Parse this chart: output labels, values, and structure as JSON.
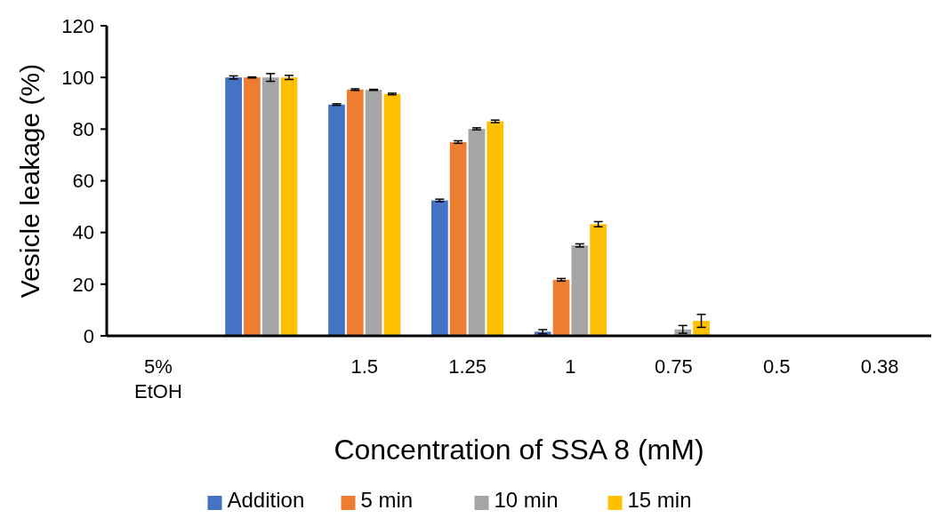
{
  "chart_data": {
    "type": "bar",
    "xlabel": "Concentration of SSA 8 (mM)",
    "ylabel": "Vesicle leakage (%)",
    "categories": [
      "5% EtOH",
      null,
      "1.5",
      "1.25",
      "1",
      "0.75",
      "0.5",
      "0.38"
    ],
    "series": [
      {
        "name": "Addition",
        "color": "#4472c4",
        "values": [
          0,
          100,
          89.5,
          52.4,
          1.6,
          0,
          0,
          0
        ],
        "errors": [
          null,
          0.6,
          0.3,
          0.5,
          0.8,
          null,
          null,
          null
        ]
      },
      {
        "name": "5 min",
        "color": "#ed7d31",
        "values": [
          0,
          100,
          95.3,
          75,
          21.7,
          0,
          0,
          0
        ],
        "errors": [
          null,
          0.2,
          0.3,
          0.5,
          0.5,
          null,
          null,
          null
        ]
      },
      {
        "name": "10 min",
        "color": "#a5a5a5",
        "values": [
          0,
          100,
          95.2,
          80.1,
          35,
          2.5,
          0,
          0
        ],
        "errors": [
          null,
          1.5,
          0.2,
          0.4,
          0.6,
          1.5,
          null,
          null
        ]
      },
      {
        "name": "15 min",
        "color": "#ffc000",
        "values": [
          0,
          100,
          93.6,
          83,
          43.2,
          5.8,
          0,
          0
        ],
        "errors": [
          null,
          0.8,
          0.3,
          0.5,
          1,
          2.5,
          null,
          null
        ]
      }
    ],
    "ylim": [
      0,
      120
    ],
    "yticks": [
      0,
      20,
      40,
      60,
      80,
      100,
      120
    ],
    "grid": false,
    "legend": "bottom"
  }
}
